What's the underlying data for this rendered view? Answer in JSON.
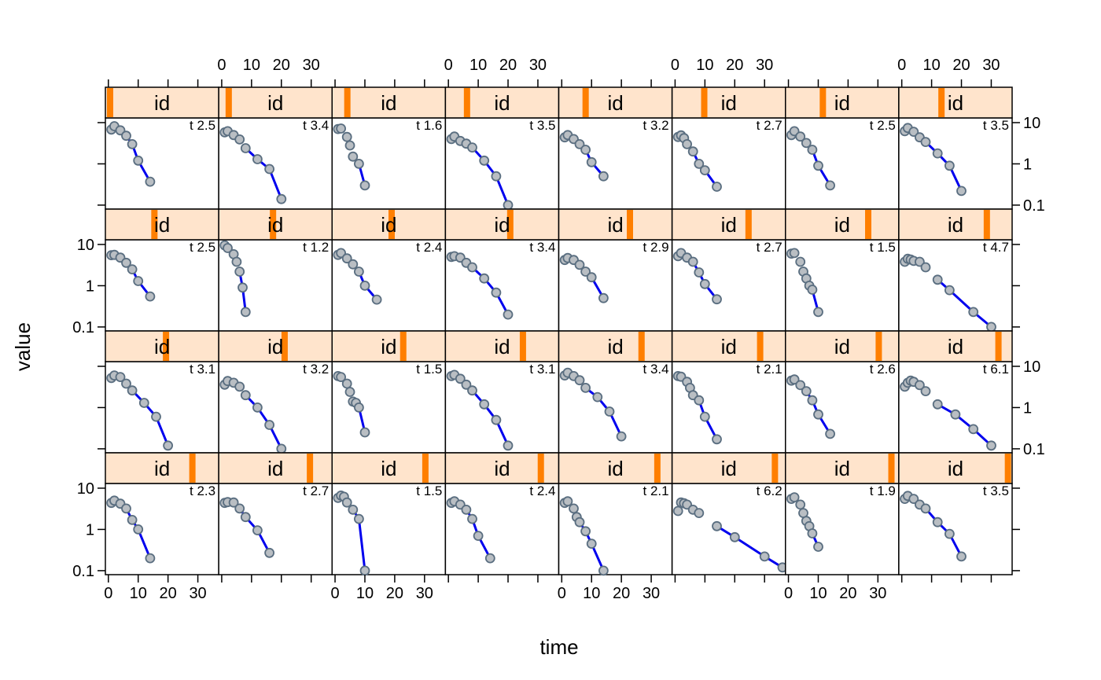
{
  "chart_data": {
    "type": "scatter",
    "layout": {
      "columns": 8,
      "rows": 4
    },
    "xlabel": "time",
    "ylabel": "value",
    "x_range": [
      -1,
      37
    ],
    "y_scale": "log",
    "y_range": [
      0.08,
      13
    ],
    "x_ticks": [
      0,
      10,
      20,
      30
    ],
    "y_ticks": [
      {
        "value": 10,
        "label": "10"
      },
      {
        "value": 1,
        "label": "1"
      },
      {
        "value": 0.1,
        "label": "0.1"
      }
    ],
    "strip_label": "id",
    "colors": {
      "strip_bg": "#ffe4cc",
      "strip_marker": "#ff7f00",
      "point_fill": "#b9bec3",
      "point_stroke": "#5a6e80",
      "line": "#0000ee",
      "frame": "#000000"
    },
    "panels": [
      {
        "row": 1,
        "col": 1,
        "strip_pos": 0.0,
        "corner": "t 2.5",
        "t": [
          1,
          2,
          4,
          6,
          8,
          10,
          14
        ],
        "v": [
          6.8,
          8.2,
          6.5,
          4.8,
          3.0,
          1.2,
          0.37
        ],
        "fit_from": 6
      },
      {
        "row": 1,
        "col": 2,
        "strip_pos": 0.05,
        "corner": "t 3.4",
        "t": [
          1,
          2,
          4,
          6,
          8,
          12,
          16,
          20
        ],
        "v": [
          5.8,
          6.2,
          5.0,
          3.9,
          2.4,
          1.3,
          0.75,
          0.14
        ],
        "fit_from": 8
      },
      {
        "row": 1,
        "col": 3,
        "strip_pos": 0.1,
        "corner": "t 1.6",
        "t": [
          1,
          2,
          4,
          5,
          6,
          8,
          10
        ],
        "v": [
          7.0,
          7.2,
          4.5,
          2.8,
          1.5,
          1.0,
          0.3
        ],
        "fit_from": 6
      },
      {
        "row": 1,
        "col": 4,
        "strip_pos": 0.16,
        "corner": "t 3.5",
        "t": [
          1,
          2,
          4,
          6,
          8,
          12,
          16,
          20
        ],
        "v": [
          4.0,
          4.6,
          3.6,
          3.1,
          2.5,
          1.2,
          0.5,
          0.1
        ],
        "fit_from": 8
      },
      {
        "row": 1,
        "col": 5,
        "strip_pos": 0.21,
        "corner": "t 3.2",
        "t": [
          1,
          2,
          4,
          6,
          8,
          10,
          14
        ],
        "v": [
          4.4,
          5.0,
          4.0,
          3.0,
          2.2,
          1.1,
          0.5
        ],
        "fit_from": 6
      },
      {
        "row": 1,
        "col": 6,
        "strip_pos": 0.26,
        "corner": "t 2.7",
        "t": [
          1,
          2,
          3,
          4,
          6,
          8,
          10,
          14
        ],
        "v": [
          4.5,
          4.9,
          4.2,
          3.0,
          2.0,
          1.0,
          0.7,
          0.28
        ],
        "fit_from": 6
      },
      {
        "row": 1,
        "col": 7,
        "strip_pos": 0.31,
        "corner": "t 2.5",
        "t": [
          1,
          2,
          4,
          6,
          8,
          10,
          14
        ],
        "v": [
          5.0,
          6.2,
          4.6,
          3.2,
          2.2,
          0.9,
          0.3
        ],
        "fit_from": 6
      },
      {
        "row": 1,
        "col": 8,
        "strip_pos": 0.36,
        "corner": "t 3.5",
        "t": [
          1,
          2,
          4,
          6,
          8,
          12,
          16,
          20
        ],
        "v": [
          6.2,
          7.4,
          6.0,
          4.4,
          3.4,
          1.8,
          0.9,
          0.22
        ],
        "fit_from": 8
      },
      {
        "row": 2,
        "col": 1,
        "strip_pos": 0.42,
        "corner": "t 2.5",
        "t": [
          1,
          2,
          4,
          6,
          8,
          10,
          14
        ],
        "v": [
          5.5,
          5.6,
          4.8,
          3.6,
          2.5,
          1.3,
          0.55
        ],
        "fit_from": 6
      },
      {
        "row": 2,
        "col": 2,
        "strip_pos": 0.47,
        "corner": "t 1.2",
        "t": [
          1,
          2,
          4,
          5,
          6,
          7,
          8
        ],
        "v": [
          9.5,
          8.2,
          5.8,
          3.8,
          2.2,
          0.9,
          0.23
        ],
        "fit_from": 6
      },
      {
        "row": 2,
        "col": 3,
        "strip_pos": 0.52,
        "corner": "t 2.4",
        "t": [
          1,
          2,
          4,
          6,
          8,
          10,
          14
        ],
        "v": [
          5.6,
          6.2,
          4.6,
          3.3,
          2.2,
          1.0,
          0.46
        ],
        "fit_from": 6
      },
      {
        "row": 2,
        "col": 4,
        "strip_pos": 0.57,
        "corner": "t 3.4",
        "t": [
          1,
          2,
          4,
          6,
          8,
          12,
          16,
          20
        ],
        "v": [
          5.0,
          5.2,
          4.8,
          3.6,
          2.8,
          1.5,
          0.68,
          0.2
        ],
        "fit_from": 8
      },
      {
        "row": 2,
        "col": 5,
        "strip_pos": 0.63,
        "corner": "t 2.9",
        "t": [
          1,
          2,
          4,
          6,
          8,
          10,
          14
        ],
        "v": [
          4.2,
          4.7,
          4.2,
          3.2,
          2.2,
          1.6,
          0.5
        ],
        "fit_from": 6
      },
      {
        "row": 2,
        "col": 6,
        "strip_pos": 0.68,
        "corner": "t 2.7",
        "t": [
          1,
          2,
          4,
          6,
          8,
          10,
          14
        ],
        "v": [
          5.2,
          6.2,
          4.8,
          3.8,
          2.1,
          1.1,
          0.47
        ],
        "fit_from": 6
      },
      {
        "row": 2,
        "col": 7,
        "strip_pos": 0.74,
        "corner": "t 1.5",
        "t": [
          1,
          2,
          4,
          5,
          6,
          7,
          8,
          10
        ],
        "v": [
          6.0,
          6.2,
          3.8,
          2.2,
          1.5,
          1.0,
          0.8,
          0.23
        ],
        "fit_from": 6
      },
      {
        "row": 2,
        "col": 8,
        "strip_pos": 0.79,
        "corner": "t 4.7",
        "t": [
          1,
          2,
          3,
          4,
          6,
          8,
          12,
          16,
          24,
          30
        ],
        "v": [
          3.8,
          4.5,
          4.3,
          4.0,
          3.8,
          2.8,
          1.4,
          0.78,
          0.23,
          0.1
        ],
        "fit_from": 12
      },
      {
        "row": 3,
        "col": 1,
        "strip_pos": 0.53,
        "corner": "t 3.1",
        "t": [
          1,
          2,
          4,
          6,
          8,
          12,
          16,
          20
        ],
        "v": [
          5.2,
          6.0,
          5.5,
          3.8,
          2.6,
          1.3,
          0.6,
          0.12
        ],
        "fit_from": 8
      },
      {
        "row": 3,
        "col": 2,
        "strip_pos": 0.58,
        "corner": "t 3.2",
        "t": [
          1,
          2,
          4,
          6,
          8,
          12,
          16,
          20
        ],
        "v": [
          3.6,
          4.4,
          4.0,
          3.2,
          2.0,
          1.0,
          0.38,
          0.1
        ],
        "fit_from": 8
      },
      {
        "row": 3,
        "col": 3,
        "strip_pos": 0.63,
        "corner": "t 1.5",
        "t": [
          1,
          2,
          4,
          5,
          6,
          7,
          8,
          10
        ],
        "v": [
          5.8,
          5.5,
          3.8,
          2.4,
          1.4,
          1.3,
          1.0,
          0.25
        ],
        "fit_from": 6
      },
      {
        "row": 3,
        "col": 4,
        "strip_pos": 0.69,
        "corner": "t 3.1",
        "t": [
          1,
          2,
          4,
          6,
          8,
          12,
          16,
          20
        ],
        "v": [
          5.8,
          6.2,
          5.0,
          3.6,
          2.6,
          1.2,
          0.5,
          0.12
        ],
        "fit_from": 8
      },
      {
        "row": 3,
        "col": 5,
        "strip_pos": 0.74,
        "corner": "t 3.4",
        "t": [
          1,
          2,
          4,
          6,
          8,
          12,
          16,
          20
        ],
        "v": [
          6.0,
          7.0,
          5.8,
          4.6,
          3.0,
          1.8,
          0.8,
          0.2
        ],
        "fit_from": 8
      },
      {
        "row": 3,
        "col": 6,
        "strip_pos": 0.79,
        "corner": "t 2.1",
        "t": [
          1,
          2,
          4,
          5,
          6,
          8,
          10,
          14
        ],
        "v": [
          5.8,
          5.6,
          4.2,
          3.0,
          2.0,
          1.5,
          0.6,
          0.17
        ],
        "fit_from": 6
      },
      {
        "row": 3,
        "col": 7,
        "strip_pos": 0.84,
        "corner": "t 2.6",
        "t": [
          1,
          2,
          4,
          6,
          8,
          10,
          14
        ],
        "v": [
          4.5,
          4.8,
          3.5,
          2.5,
          1.5,
          0.68,
          0.23
        ],
        "fit_from": 6
      },
      {
        "row": 3,
        "col": 8,
        "strip_pos": 0.9,
        "corner": "t 6.1",
        "t": [
          1,
          2,
          3,
          4,
          6,
          8,
          12,
          18,
          24,
          30
        ],
        "v": [
          3.2,
          4.0,
          4.5,
          4.2,
          3.5,
          2.5,
          1.2,
          0.68,
          0.3,
          0.12
        ],
        "fit_from": 12
      },
      {
        "row": 4,
        "col": 1,
        "strip_pos": 0.78,
        "corner": "t 2.3",
        "t": [
          1,
          2,
          4,
          6,
          8,
          10,
          14
        ],
        "v": [
          4.4,
          5.0,
          4.2,
          3.2,
          1.7,
          1.0,
          0.2
        ],
        "fit_from": 6
      },
      {
        "row": 4,
        "col": 2,
        "strip_pos": 0.82,
        "corner": "t 2.7",
        "t": [
          1,
          2,
          4,
          6,
          8,
          12,
          16
        ],
        "v": [
          4.4,
          4.6,
          4.5,
          3.2,
          2.0,
          0.95,
          0.27
        ],
        "fit_from": 6
      },
      {
        "row": 4,
        "col": 3,
        "strip_pos": 0.84,
        "corner": "t 1.5",
        "t": [
          1,
          2,
          3,
          4,
          6,
          8,
          10
        ],
        "v": [
          5.8,
          6.6,
          6.2,
          4.5,
          3.0,
          1.8,
          0.1
        ],
        "fit_from": 6
      },
      {
        "row": 4,
        "col": 4,
        "strip_pos": 0.86,
        "corner": "t 2.4",
        "t": [
          1,
          2,
          4,
          6,
          8,
          10,
          14
        ],
        "v": [
          4.4,
          4.8,
          4.0,
          3.0,
          1.8,
          0.7,
          0.2
        ],
        "fit_from": 6
      },
      {
        "row": 4,
        "col": 5,
        "strip_pos": 0.89,
        "corner": "t 2.1",
        "t": [
          1,
          2,
          4,
          5,
          6,
          8,
          10,
          14
        ],
        "v": [
          4.4,
          4.8,
          3.2,
          2.0,
          1.5,
          0.9,
          0.45,
          0.1
        ],
        "fit_from": 6
      },
      {
        "row": 4,
        "col": 6,
        "strip_pos": 0.93,
        "corner": "t 6.2",
        "t": [
          1,
          2,
          3,
          4,
          6,
          8,
          14,
          20,
          30,
          36
        ],
        "v": [
          2.8,
          4.5,
          4.3,
          4.0,
          3.0,
          2.5,
          1.2,
          0.65,
          0.22,
          0.12
        ],
        "fit_from": 14
      },
      {
        "row": 4,
        "col": 7,
        "strip_pos": 0.96,
        "corner": "t 1.9",
        "t": [
          1,
          2,
          4,
          5,
          6,
          7,
          8,
          10
        ],
        "v": [
          5.5,
          6.0,
          4.0,
          2.5,
          1.6,
          1.2,
          0.8,
          0.38
        ],
        "fit_from": 6
      },
      {
        "row": 4,
        "col": 8,
        "strip_pos": 0.99,
        "corner": "t 3.5",
        "t": [
          1,
          2,
          4,
          6,
          8,
          12,
          16,
          20
        ],
        "v": [
          5.5,
          6.5,
          5.5,
          4.0,
          3.2,
          1.5,
          0.78,
          0.22
        ],
        "fit_from": 8
      }
    ]
  }
}
